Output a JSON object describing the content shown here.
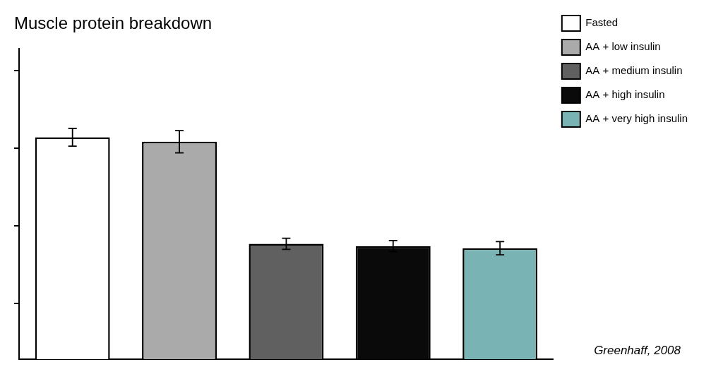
{
  "chart_data": {
    "type": "bar",
    "title": "Muscle protein breakdown",
    "categories": [
      "Fasted",
      "AA + low insulin",
      "AA + medium insulin",
      "AA + high insulin",
      "AA + very high insulin"
    ],
    "values": [
      100,
      98,
      52,
      51,
      50
    ],
    "errors": [
      4,
      5,
      2.5,
      2.5,
      3
    ],
    "colors": [
      "#ffffff",
      "#aaaaaa",
      "#606060",
      "#0a0a0a",
      "#7ab3b3"
    ],
    "ylim": [
      0,
      140
    ],
    "yticks": [
      25,
      60,
      95,
      130
    ],
    "grid": false,
    "legend": "right",
    "tick_labels": false,
    "annotations": [
      "Greenhaff, 2008"
    ]
  }
}
